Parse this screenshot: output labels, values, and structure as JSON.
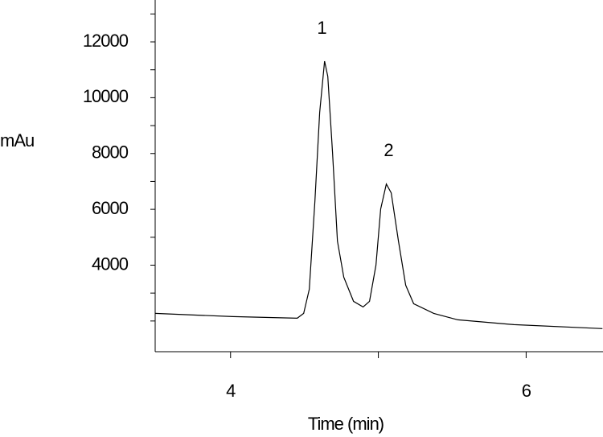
{
  "chart_data": {
    "type": "line",
    "y_label": "mAu",
    "x_label": "Time (min)",
    "x": [
      3.489,
      4.016,
      4.451,
      4.495,
      4.533,
      4.571,
      4.603,
      4.636,
      4.658,
      4.69,
      4.723,
      4.766,
      4.832,
      4.897,
      4.94,
      4.984,
      5.016,
      5.054,
      5.087,
      5.136,
      5.185,
      5.239,
      5.375,
      5.538,
      5.918,
      6.516
    ],
    "series": [
      {
        "color": "#000000",
        "values": [
          2273,
          2158,
          2100,
          2273,
          3137,
          6302,
          9468,
          11310,
          10763,
          8029,
          4863,
          3568,
          2705,
          2503,
          2705,
          4000,
          6015,
          6907,
          6590,
          4863,
          3281,
          2618,
          2273,
          2043,
          1870,
          1727
        ]
      }
    ],
    "annotations": [
      "1",
      "2"
    ],
    "xlim": [
      3.49,
      6.52
    ],
    "xticks": [
      4,
      6
    ],
    "xminorticks": [
      5
    ],
    "ylim": [
      900,
      13500
    ],
    "yticks": [
      4000,
      6000,
      8000,
      10000,
      12000
    ],
    "yminorticks": [
      2000,
      3000,
      5000,
      7000,
      9000,
      11000,
      13000
    ]
  }
}
